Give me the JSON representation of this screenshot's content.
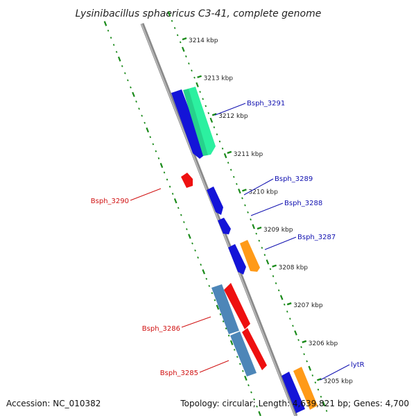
{
  "title": "Lysinibacillus sphaericus C3-41, complete genome",
  "footer": {
    "accession": "Accession: NC_010382",
    "summary": "Topology: circular; Length: 4,639,821 bp; Genes: 4,700"
  },
  "colors": {
    "backbone": "#8a8a8a",
    "ticks": "#1a8a1a",
    "forward_label": "#1010b0",
    "reverse_label": "#d01010",
    "blue": "#1414d8",
    "red": "#ee1010",
    "cyan_green": "#2cf0a0",
    "orange": "#ff9a18",
    "steel": "#4d86b8"
  },
  "kbp_labels": [
    {
      "kbp": 3214,
      "text": "3214 kbp"
    },
    {
      "kbp": 3213,
      "text": "3213 kbp"
    },
    {
      "kbp": 3212,
      "text": "3212 kbp"
    },
    {
      "kbp": 3211,
      "text": "3211 kbp"
    },
    {
      "kbp": 3210,
      "text": "3210 kbp"
    },
    {
      "kbp": 3209,
      "text": "3209 kbp"
    },
    {
      "kbp": 3208,
      "text": "3208 kbp"
    },
    {
      "kbp": 3207,
      "text": "3207 kbp"
    },
    {
      "kbp": 3206,
      "text": "3206 kbp"
    },
    {
      "kbp": 3205,
      "text": "3205 kbp"
    }
  ],
  "gene_labels": [
    {
      "name": "Bsph_3291",
      "strand": "forward"
    },
    {
      "name": "Bsph_3289",
      "strand": "forward"
    },
    {
      "name": "Bsph_3288",
      "strand": "forward"
    },
    {
      "name": "Bsph_3287",
      "strand": "forward"
    },
    {
      "name": "lytR",
      "strand": "forward"
    },
    {
      "name": "Bsph_3290",
      "strand": "reverse"
    },
    {
      "name": "Bsph_3286",
      "strand": "reverse"
    },
    {
      "name": "Bsph_3285",
      "strand": "reverse"
    }
  ]
}
